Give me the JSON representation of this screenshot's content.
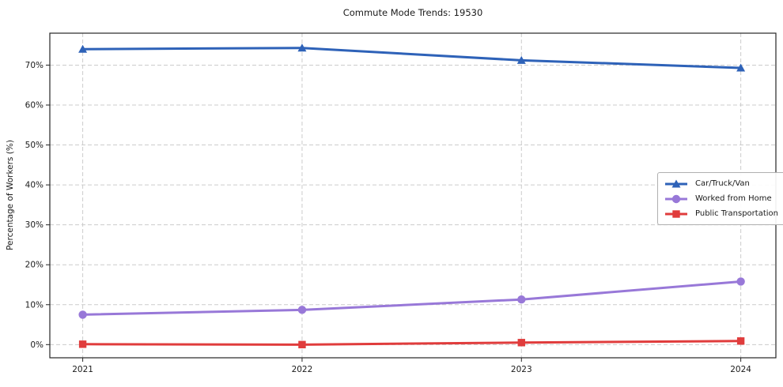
{
  "title": "Commute Mode Trends: 19530",
  "chart_data": {
    "type": "line",
    "title": "Commute Mode Trends: 19530",
    "xlabel": "",
    "ylabel": "Percentage of Workers (%)",
    "x": [
      2021,
      2022,
      2023,
      2024
    ],
    "xtick_labels": [
      "2021",
      "2022",
      "2023",
      "2024"
    ],
    "yticks": [
      0,
      10,
      20,
      30,
      40,
      50,
      60,
      70
    ],
    "ytick_labels": [
      "0%",
      "10%",
      "20%",
      "30%",
      "40%",
      "50%",
      "60%",
      "70%"
    ],
    "ylim": [
      -3.3,
      78.0
    ],
    "xlim": [
      2020.85,
      2024.16
    ],
    "grid": true,
    "legend_position": "center right",
    "series": [
      {
        "name": "Car/Truck/Van",
        "color": "#2e62b8",
        "marker": "triangle",
        "values": [
          74.0,
          74.3,
          71.2,
          69.3
        ]
      },
      {
        "name": "Worked from Home",
        "color": "#9878d8",
        "marker": "circle",
        "values": [
          7.5,
          8.7,
          11.3,
          15.8
        ]
      },
      {
        "name": "Public Transportation",
        "color": "#e03c3c",
        "marker": "square",
        "values": [
          0.1,
          0.0,
          0.5,
          0.9
        ]
      }
    ],
    "axis_color": "#262626",
    "grid_color": "#cccccc",
    "text_color": "#1a1a1a"
  }
}
